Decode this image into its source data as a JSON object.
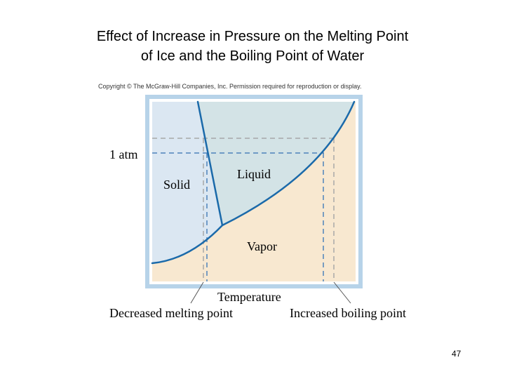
{
  "slide": {
    "title_line1": "Effect of Increase in Pressure on the Melting Point",
    "title_line2": "of Ice and the Boiling Point of Water",
    "page_number": "47"
  },
  "copyright": "Copyright © The McGraw-Hill Companies, Inc. Permission required for reproduction or display.",
  "diagram": {
    "pressure_label": "1 atm",
    "region_solid": "Solid",
    "region_liquid": "Liquid",
    "region_vapor": "Vapor",
    "x_axis_label": "Temperature",
    "left_note": "Decreased melting point",
    "right_note": "Increased boiling point",
    "colors": {
      "solid": "#dbe7f2",
      "liquid": "#d3e3e6",
      "vapor": "#f8e8d0",
      "frame": "#b7d3e9",
      "curve": "#1b6aaa",
      "dash": "#4d82ba",
      "gray_dash": "#a8a8a8"
    }
  }
}
